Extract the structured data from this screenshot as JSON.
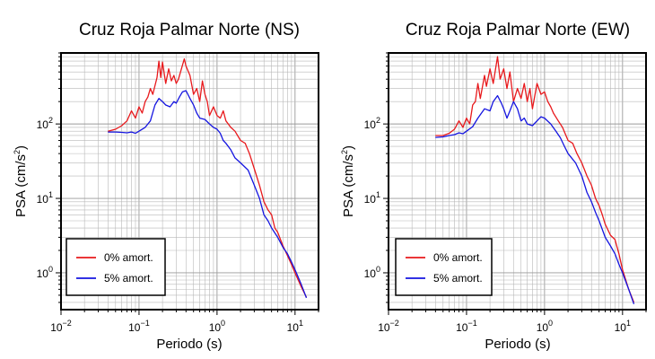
{
  "chart_data": [
    {
      "type": "line",
      "title": "Cruz Roja Palmar Norte (NS)",
      "xlabel": "Periodo (s)",
      "ylabel": {
        "base": "PSA (cm/s",
        "sup": "2",
        "close": ")"
      },
      "xscale": "log",
      "yscale": "log",
      "xlim": [
        0.01,
        20
      ],
      "ylim": [
        0.32,
        900
      ],
      "x_ticks": [
        {
          "value": 0.01,
          "base": "10",
          "exp": "−2"
        },
        {
          "value": 0.1,
          "base": "10",
          "exp": "−1"
        },
        {
          "value": 1,
          "base": "10",
          "exp": "0"
        },
        {
          "value": 10,
          "base": "10",
          "exp": "1"
        }
      ],
      "y_ticks": [
        {
          "value": 1,
          "base": "10",
          "exp": "0"
        },
        {
          "value": 10,
          "base": "10",
          "exp": "1"
        },
        {
          "value": 100,
          "base": "10",
          "exp": "2"
        }
      ],
      "grid": true,
      "legend_position": "bottom-left",
      "series": [
        {
          "name": "0% amort.",
          "color": "#e8191c",
          "points": [
            [
              0.04,
              80
            ],
            [
              0.05,
              85
            ],
            [
              0.06,
              95
            ],
            [
              0.07,
              110
            ],
            [
              0.08,
              150
            ],
            [
              0.09,
              120
            ],
            [
              0.1,
              170
            ],
            [
              0.11,
              140
            ],
            [
              0.12,
              200
            ],
            [
              0.13,
              230
            ],
            [
              0.14,
              300
            ],
            [
              0.15,
              250
            ],
            [
              0.17,
              420
            ],
            [
              0.18,
              700
            ],
            [
              0.19,
              420
            ],
            [
              0.2,
              680
            ],
            [
              0.22,
              350
            ],
            [
              0.24,
              550
            ],
            [
              0.26,
              380
            ],
            [
              0.28,
              450
            ],
            [
              0.3,
              350
            ],
            [
              0.32,
              400
            ],
            [
              0.35,
              550
            ],
            [
              0.38,
              750
            ],
            [
              0.4,
              600
            ],
            [
              0.45,
              450
            ],
            [
              0.5,
              250
            ],
            [
              0.55,
              300
            ],
            [
              0.6,
              200
            ],
            [
              0.65,
              380
            ],
            [
              0.7,
              250
            ],
            [
              0.75,
              200
            ],
            [
              0.8,
              130
            ],
            [
              0.9,
              170
            ],
            [
              1.0,
              130
            ],
            [
              1.1,
              120
            ],
            [
              1.2,
              150
            ],
            [
              1.3,
              110
            ],
            [
              1.5,
              90
            ],
            [
              1.7,
              80
            ],
            [
              2.0,
              60
            ],
            [
              2.3,
              55
            ],
            [
              2.6,
              40
            ],
            [
              3.0,
              25
            ],
            [
              3.5,
              15
            ],
            [
              4.0,
              9
            ],
            [
              4.5,
              7
            ],
            [
              5.0,
              6
            ],
            [
              5.5,
              4
            ],
            [
              6.0,
              3.5
            ],
            [
              6.5,
              2.8
            ],
            [
              7.0,
              2.3
            ],
            [
              8.0,
              1.7
            ],
            [
              9.0,
              1.3
            ],
            [
              10,
              1.0
            ],
            [
              12,
              0.65
            ],
            [
              14,
              0.47
            ]
          ]
        },
        {
          "name": "5% amort.",
          "color": "#1515e0",
          "points": [
            [
              0.04,
              78
            ],
            [
              0.05,
              78
            ],
            [
              0.06,
              77
            ],
            [
              0.07,
              76
            ],
            [
              0.08,
              78
            ],
            [
              0.09,
              75
            ],
            [
              0.1,
              80
            ],
            [
              0.12,
              90
            ],
            [
              0.14,
              110
            ],
            [
              0.16,
              180
            ],
            [
              0.18,
              220
            ],
            [
              0.2,
              200
            ],
            [
              0.22,
              180
            ],
            [
              0.25,
              170
            ],
            [
              0.28,
              200
            ],
            [
              0.3,
              190
            ],
            [
              0.33,
              230
            ],
            [
              0.36,
              270
            ],
            [
              0.4,
              280
            ],
            [
              0.45,
              220
            ],
            [
              0.5,
              180
            ],
            [
              0.55,
              140
            ],
            [
              0.6,
              120
            ],
            [
              0.7,
              115
            ],
            [
              0.8,
              100
            ],
            [
              0.9,
              90
            ],
            [
              1.0,
              85
            ],
            [
              1.1,
              75
            ],
            [
              1.2,
              60
            ],
            [
              1.3,
              55
            ],
            [
              1.5,
              45
            ],
            [
              1.7,
              35
            ],
            [
              2.0,
              30
            ],
            [
              2.5,
              24
            ],
            [
              3.0,
              15
            ],
            [
              3.5,
              10
            ],
            [
              4.0,
              6
            ],
            [
              4.5,
              5
            ],
            [
              5.0,
              4
            ],
            [
              6.0,
              3
            ],
            [
              7.0,
              2.2
            ],
            [
              8.0,
              1.8
            ],
            [
              9.0,
              1.4
            ],
            [
              10,
              1.1
            ],
            [
              12,
              0.7
            ],
            [
              14,
              0.46
            ]
          ]
        }
      ]
    },
    {
      "type": "line",
      "title": "Cruz Roja Palmar Norte (EW)",
      "xlabel": "Periodo (s)",
      "ylabel": {
        "base": "PSA (cm/s",
        "sup": "2",
        "close": ")"
      },
      "xscale": "log",
      "yscale": "log",
      "xlim": [
        0.01,
        20
      ],
      "ylim": [
        0.32,
        900
      ],
      "x_ticks": [
        {
          "value": 0.01,
          "base": "10",
          "exp": "−2"
        },
        {
          "value": 0.1,
          "base": "10",
          "exp": "−1"
        },
        {
          "value": 1,
          "base": "10",
          "exp": "0"
        },
        {
          "value": 10,
          "base": "10",
          "exp": "1"
        }
      ],
      "y_ticks": [
        {
          "value": 1,
          "base": "10",
          "exp": "0"
        },
        {
          "value": 10,
          "base": "10",
          "exp": "1"
        },
        {
          "value": 100,
          "base": "10",
          "exp": "2"
        }
      ],
      "grid": true,
      "legend_position": "bottom-left",
      "series": [
        {
          "name": "0% amort.",
          "color": "#e8191c",
          "points": [
            [
              0.04,
              70
            ],
            [
              0.05,
              70
            ],
            [
              0.06,
              75
            ],
            [
              0.07,
              85
            ],
            [
              0.08,
              110
            ],
            [
              0.09,
              90
            ],
            [
              0.1,
              120
            ],
            [
              0.11,
              100
            ],
            [
              0.12,
              180
            ],
            [
              0.13,
              200
            ],
            [
              0.14,
              350
            ],
            [
              0.15,
              220
            ],
            [
              0.17,
              450
            ],
            [
              0.18,
              320
            ],
            [
              0.2,
              550
            ],
            [
              0.22,
              350
            ],
            [
              0.25,
              800
            ],
            [
              0.27,
              400
            ],
            [
              0.3,
              550
            ],
            [
              0.33,
              300
            ],
            [
              0.36,
              500
            ],
            [
              0.4,
              200
            ],
            [
              0.45,
              300
            ],
            [
              0.5,
              220
            ],
            [
              0.55,
              350
            ],
            [
              0.6,
              200
            ],
            [
              0.65,
              300
            ],
            [
              0.7,
              160
            ],
            [
              0.8,
              350
            ],
            [
              0.9,
              250
            ],
            [
              1.0,
              270
            ],
            [
              1.1,
              200
            ],
            [
              1.2,
              170
            ],
            [
              1.3,
              140
            ],
            [
              1.5,
              110
            ],
            [
              1.7,
              90
            ],
            [
              2.0,
              60
            ],
            [
              2.3,
              55
            ],
            [
              2.6,
              40
            ],
            [
              3.0,
              30
            ],
            [
              3.5,
              20
            ],
            [
              4.0,
              15
            ],
            [
              4.5,
              10
            ],
            [
              5.0,
              8
            ],
            [
              5.5,
              6
            ],
            [
              6.0,
              4.5
            ],
            [
              7.0,
              3.2
            ],
            [
              8.0,
              2.8
            ],
            [
              9.0,
              1.8
            ],
            [
              10,
              1.1
            ],
            [
              12,
              0.6
            ],
            [
              14,
              0.4
            ]
          ]
        },
        {
          "name": "5% amort.",
          "color": "#1515e0",
          "points": [
            [
              0.04,
              66
            ],
            [
              0.05,
              67
            ],
            [
              0.06,
              70
            ],
            [
              0.07,
              72
            ],
            [
              0.08,
              76
            ],
            [
              0.09,
              74
            ],
            [
              0.1,
              80
            ],
            [
              0.12,
              92
            ],
            [
              0.14,
              120
            ],
            [
              0.17,
              160
            ],
            [
              0.2,
              150
            ],
            [
              0.22,
              200
            ],
            [
              0.25,
              240
            ],
            [
              0.28,
              190
            ],
            [
              0.3,
              160
            ],
            [
              0.33,
              120
            ],
            [
              0.36,
              150
            ],
            [
              0.4,
              200
            ],
            [
              0.45,
              160
            ],
            [
              0.5,
              110
            ],
            [
              0.55,
              120
            ],
            [
              0.6,
              100
            ],
            [
              0.7,
              95
            ],
            [
              0.8,
              110
            ],
            [
              0.9,
              125
            ],
            [
              1.0,
              120
            ],
            [
              1.2,
              100
            ],
            [
              1.4,
              80
            ],
            [
              1.6,
              65
            ],
            [
              1.8,
              50
            ],
            [
              2.0,
              40
            ],
            [
              2.5,
              30
            ],
            [
              3.0,
              20
            ],
            [
              3.5,
              12
            ],
            [
              4.0,
              9
            ],
            [
              4.5,
              6.5
            ],
            [
              5.0,
              5
            ],
            [
              6.0,
              3
            ],
            [
              7.0,
              2.3
            ],
            [
              8.0,
              1.8
            ],
            [
              9.0,
              1.3
            ],
            [
              10,
              1.0
            ],
            [
              12,
              0.6
            ],
            [
              14,
              0.38
            ]
          ]
        }
      ]
    }
  ]
}
